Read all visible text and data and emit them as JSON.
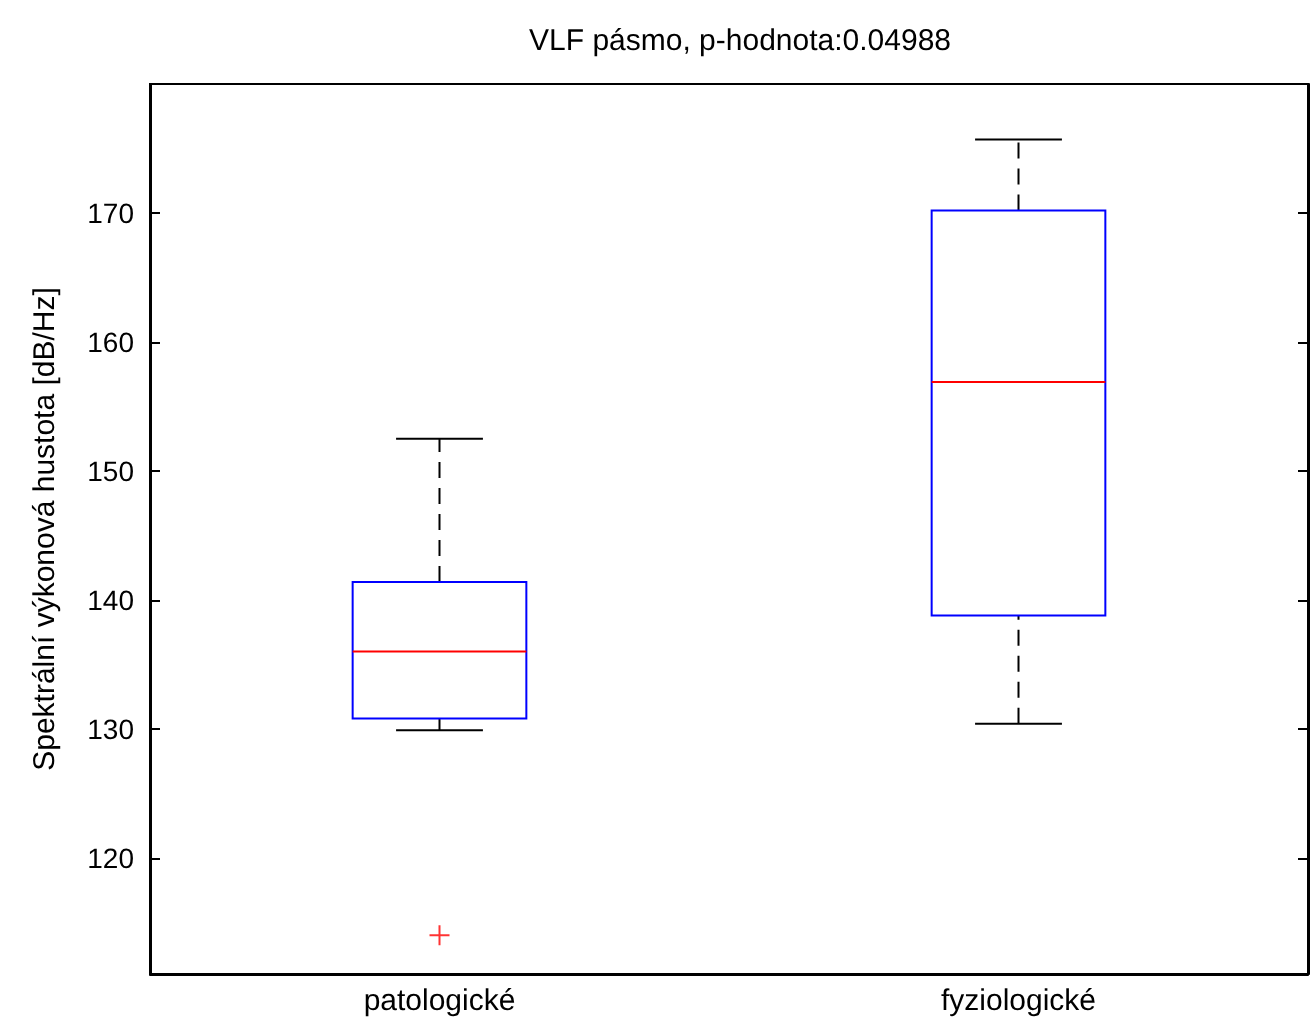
{
  "chart_data": {
    "type": "box",
    "title": "VLF pásmo, p-hodnota:0.04988",
    "ylabel": "Spektrální výkonová hustota [dB/Hz]",
    "categories": [
      "patologické",
      "fyziologické"
    ],
    "series": [
      {
        "color": "#0000ff",
        "boxes": [
          {
            "low": 129.9,
            "q1": 130.8,
            "median": 136.0,
            "q3": 141.4,
            "high": 152.5,
            "outliers": [
              114.0
            ]
          },
          {
            "low": 130.4,
            "q1": 138.8,
            "median": 156.9,
            "q3": 170.2,
            "high": 175.7
          }
        ]
      }
    ],
    "ylim": [
      111,
      180
    ],
    "yticks": [
      120,
      130,
      140,
      150,
      160,
      170
    ],
    "grid": false
  }
}
